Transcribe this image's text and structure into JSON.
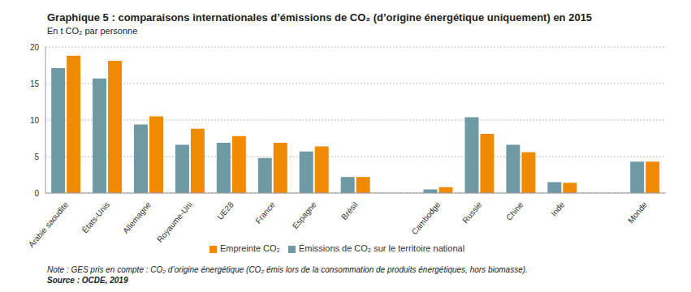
{
  "chart_data": {
    "type": "bar",
    "title": "Graphique 5 : comparaisons internationales d’émissions de CO₂ (d’origine énergétique uniquement) en 2015",
    "subtitle": "En t CO₂ par personne",
    "categories": [
      "Arabie saoudite",
      "États-Unis",
      "Allemagne",
      "Royaume-Uni",
      "UE28",
      "France",
      "Espagne",
      "Brésil",
      null,
      "Cambodge",
      "Russie",
      "Chine",
      "Inde",
      null,
      "Monde"
    ],
    "series": [
      {
        "name": "Émissions de CO₂ sur le territoire national",
        "color": "#6f9aa5",
        "values": [
          17.1,
          15.7,
          9.4,
          6.6,
          6.9,
          4.8,
          5.7,
          2.2,
          null,
          0.5,
          10.4,
          6.6,
          1.5,
          null,
          4.3
        ]
      },
      {
        "name": "Empreinte CO₂",
        "color": "#f08a00",
        "values": [
          18.8,
          18.1,
          10.5,
          8.8,
          7.8,
          6.9,
          6.4,
          2.2,
          null,
          0.8,
          8.1,
          5.6,
          1.4,
          null,
          4.3
        ]
      }
    ],
    "ylim": [
      0,
      20
    ],
    "yticks": [
      0,
      5,
      10,
      15,
      20
    ],
    "grid": true,
    "legend": "bottom",
    "annotations": [
      "Note : GES pris en compte : CO₂ d’origine énergétique (CO₂ émis lors de la consommation de produits énergétiques, hors biomasse).",
      "Source : OCDE, 2019"
    ]
  }
}
